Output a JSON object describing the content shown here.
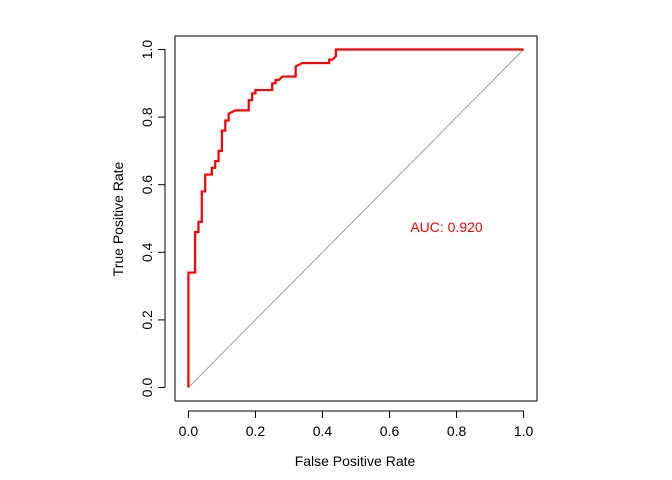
{
  "chart_data": {
    "type": "line",
    "xlabel": "False Positive Rate",
    "ylabel": "True Positive Rate",
    "xlim": [
      -0.04,
      1.04
    ],
    "ylim": [
      -0.04,
      1.04
    ],
    "xticks": [
      0.0,
      0.2,
      0.4,
      0.6,
      0.8,
      1.0
    ],
    "yticks": [
      0.0,
      0.2,
      0.4,
      0.6,
      0.8,
      1.0
    ],
    "xtick_labels": [
      "0.0",
      "0.2",
      "0.4",
      "0.6",
      "0.8",
      "1.0"
    ],
    "ytick_labels": [
      "0.0",
      "0.2",
      "0.4",
      "0.6",
      "0.8",
      "1.0"
    ],
    "grid": false,
    "annotation": {
      "text": "AUC: 0.920",
      "x": 0.77,
      "y": 0.475
    },
    "reference_line": {
      "from": [
        0,
        0
      ],
      "to": [
        1,
        1
      ],
      "color": "#a0a0a0"
    },
    "series": [
      {
        "color": "#ff0000",
        "x": [
          0.0,
          0.0,
          0.0,
          0.01,
          0.02,
          0.02,
          0.03,
          0.03,
          0.04,
          0.04,
          0.05,
          0.05,
          0.06,
          0.06,
          0.07,
          0.07,
          0.08,
          0.08,
          0.09,
          0.09,
          0.1,
          0.1,
          0.11,
          0.11,
          0.12,
          0.12,
          0.14,
          0.17,
          0.18,
          0.18,
          0.19,
          0.19,
          0.2,
          0.2,
          0.22,
          0.25,
          0.25,
          0.26,
          0.26,
          0.27,
          0.28,
          0.29,
          0.29,
          0.32,
          0.32,
          0.34,
          0.41,
          0.42,
          0.42,
          0.43,
          0.44,
          0.44,
          1.0
        ],
        "y": [
          0.0,
          0.34,
          0.34,
          0.34,
          0.34,
          0.46,
          0.46,
          0.49,
          0.49,
          0.58,
          0.58,
          0.63,
          0.63,
          0.63,
          0.63,
          0.65,
          0.65,
          0.67,
          0.67,
          0.7,
          0.7,
          0.76,
          0.76,
          0.79,
          0.79,
          0.81,
          0.82,
          0.82,
          0.82,
          0.85,
          0.85,
          0.87,
          0.87,
          0.88,
          0.88,
          0.88,
          0.9,
          0.9,
          0.91,
          0.91,
          0.92,
          0.92,
          0.92,
          0.92,
          0.95,
          0.96,
          0.96,
          0.96,
          0.97,
          0.97,
          0.98,
          1.0,
          1.0
        ]
      }
    ]
  },
  "colors": {
    "curve": "#ff0000",
    "annotation": "#ff0000",
    "reference": "#a0a0a0",
    "axis": "#000000"
  }
}
